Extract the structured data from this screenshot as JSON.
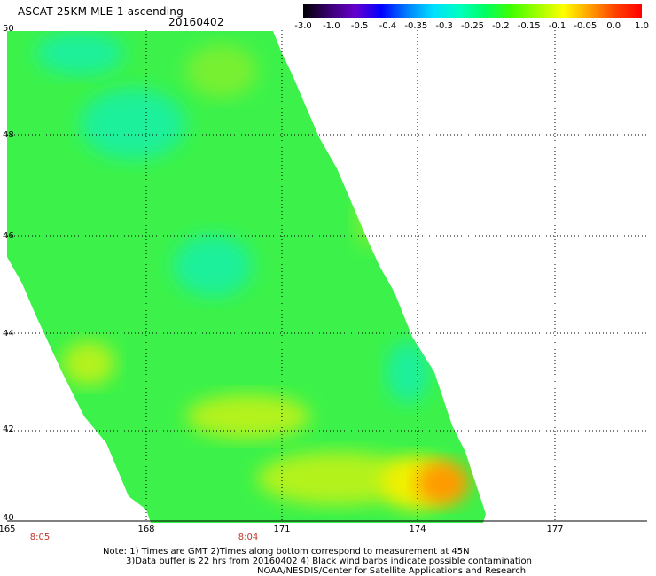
{
  "header": {
    "title": "ASCAT 25KM MLE-1 ascending",
    "date": "20160402"
  },
  "colorbar": {
    "tick_labels": [
      "-3.0",
      "-1.0",
      "-0.5",
      "-0.4",
      "-0.35",
      "-0.3",
      "-0.25",
      "-0.2",
      "-0.15",
      "-0.1",
      "-0.05",
      "0.0",
      "1.0"
    ],
    "colors": [
      "#000000",
      "#3a0070",
      "#6600cc",
      "#0000ff",
      "#0080ff",
      "#00e0ff",
      "#00ffc0",
      "#00ff60",
      "#40ff00",
      "#a0ff00",
      "#ffff00",
      "#ffa000",
      "#ff4000",
      "#ff0000"
    ]
  },
  "map": {
    "lat_labels": [
      "50",
      "48",
      "46",
      "44",
      "42",
      "40"
    ],
    "lon_labels": [
      "165",
      "168",
      "171",
      "174",
      "177"
    ],
    "time_labels": [
      "8:05",
      "8:04"
    ],
    "swath_colors": {
      "base": "#3cf24a",
      "cyan_patch": "#1ef09a",
      "yellow_green": "#b4f21e",
      "yellow": "#f0f000",
      "orange": "#ff9a00",
      "light_green": "#78f030"
    }
  },
  "notes": {
    "line1": "Note: 1) Times are GMT 2)Times along bottom correspond to measurement at 45N",
    "line2": "3)Data buffer is 22 hrs from 20160402 4) Black wind barbs indicate possible contamination",
    "line3": "NOAA/NESDIS/Center for Satellite Applications and Research"
  }
}
